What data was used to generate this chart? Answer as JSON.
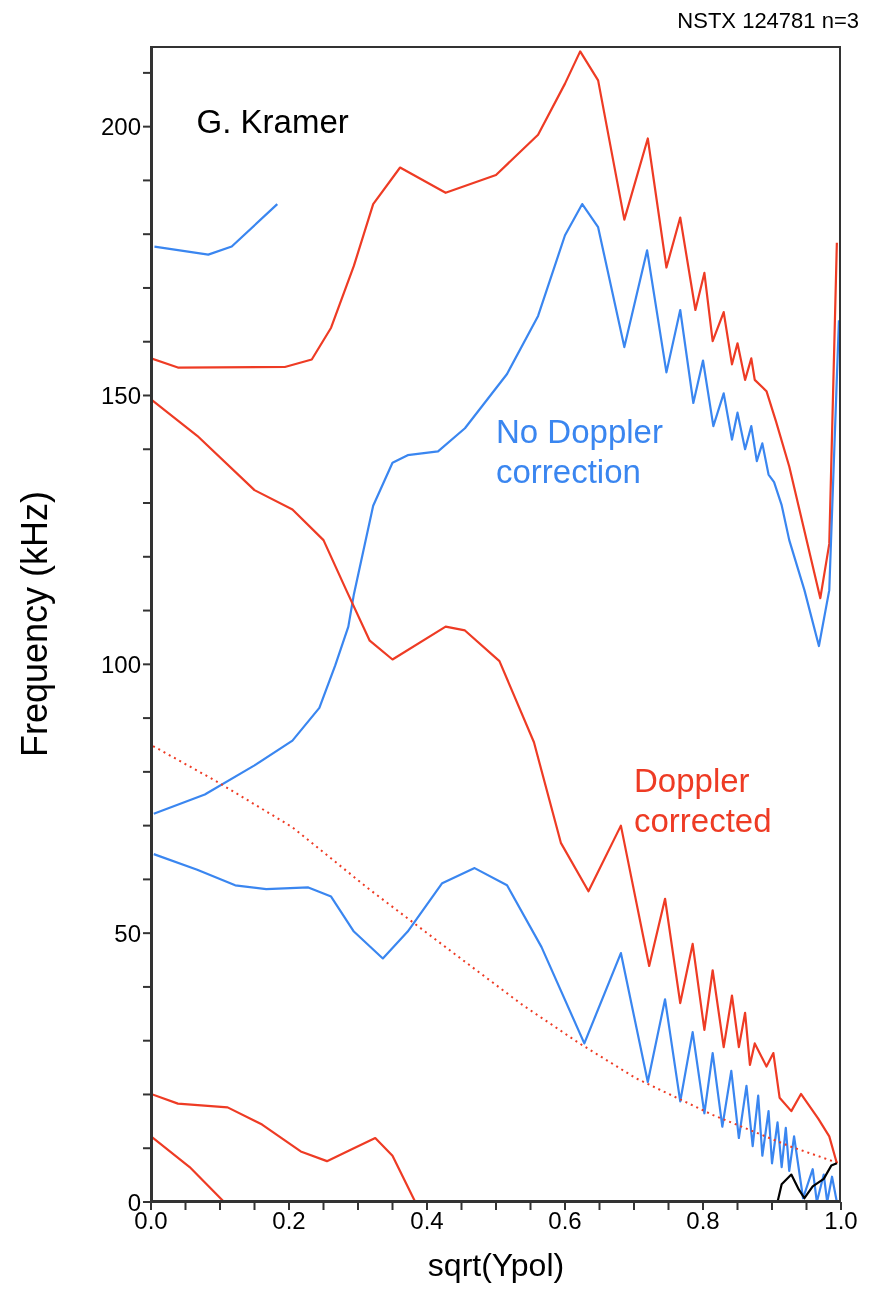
{
  "chart_data": {
    "type": "line",
    "title": "NSTX 124781 n=3",
    "xlabel": "sqrt(Ypol)",
    "ylabel": "Frequency (kHz)",
    "marker": "none",
    "line_style": "solid",
    "xlim": [
      0,
      1
    ],
    "xticks": [
      {
        "value": 0,
        "label": "0.0"
      },
      {
        "value": 0.05,
        "label": null
      },
      {
        "value": 0.1,
        "label": null
      },
      {
        "value": 0.15,
        "label": null
      },
      {
        "value": 0.2,
        "label": "0.2"
      },
      {
        "value": 0.25,
        "label": null
      },
      {
        "value": 0.3,
        "label": null
      },
      {
        "value": 0.35,
        "label": null
      },
      {
        "value": 0.4,
        "label": "0.4"
      },
      {
        "value": 0.45,
        "label": null
      },
      {
        "value": 0.5,
        "label": null
      },
      {
        "value": 0.55,
        "label": null
      },
      {
        "value": 0.6,
        "label": "0.6"
      },
      {
        "value": 0.65,
        "label": null
      },
      {
        "value": 0.7,
        "label": null
      },
      {
        "value": 0.75,
        "label": null
      },
      {
        "value": 0.8,
        "label": "0.8"
      },
      {
        "value": 0.85,
        "label": null
      },
      {
        "value": 0.9,
        "label": null
      },
      {
        "value": 0.95,
        "label": null
      },
      {
        "value": 1,
        "label": "1.0"
      }
    ],
    "ylim": [
      0,
      215
    ],
    "yticks": [
      0,
      {
        "value": 10,
        "label": null
      },
      {
        "value": 20,
        "label": null
      },
      {
        "value": 30,
        "label": null
      },
      {
        "value": 40,
        "label": null
      },
      50,
      {
        "value": 60,
        "label": null
      },
      {
        "value": 70,
        "label": null
      },
      {
        "value": 80,
        "label": null
      },
      {
        "value": 90,
        "label": null
      },
      100,
      {
        "value": 110,
        "label": null
      },
      {
        "value": 120,
        "label": null
      },
      {
        "value": 130,
        "label": null
      },
      {
        "value": 140,
        "label": null
      },
      150,
      {
        "value": 160,
        "label": null
      },
      {
        "value": 170,
        "label": null
      },
      {
        "value": 180,
        "label": null
      },
      {
        "value": 190,
        "label": null
      },
      200,
      {
        "value": 210,
        "label": null
      }
    ],
    "annotations": [
      "G. Kramer"
    ],
    "series": [
      {
        "color": "#3a86f0",
        "x": [
          0.005,
          0.083,
          0.117,
          0.183
        ],
        "values": [
          177.7,
          176.2,
          177.7,
          185.6
        ]
      },
      {
        "color": "#ee3b24",
        "x": [
          0,
          0.039,
          0.194,
          0.233,
          0.261,
          0.294,
          0.322,
          0.361,
          0.427,
          0.5,
          0.561,
          0.6,
          0.622,
          0.648,
          0.686,
          0.72,
          0.747,
          0.767,
          0.789,
          0.802,
          0.814,
          0.83,
          0.842,
          0.85,
          0.861,
          0.87,
          0.875,
          0.892,
          0.906,
          0.925,
          0.97,
          0.983,
          0.994
        ],
        "values": [
          156.9,
          155.2,
          155.3,
          156.7,
          162.6,
          174.1,
          185.6,
          192.4,
          187.7,
          191,
          198.5,
          208,
          214,
          208.6,
          182.7,
          197.8,
          173.8,
          183.1,
          165.9,
          172.8,
          160.1,
          165.5,
          155.8,
          159.7,
          152.9,
          156.9,
          152.9,
          150.8,
          145.1,
          136.8,
          112.3,
          122.4,
          178.4
        ]
      },
      {
        "name": "No Doppler correction",
        "color": "#3a86f0",
        "x": [
          0.004,
          0.078,
          0.15,
          0.205,
          0.244,
          0.267,
          0.286,
          0.294,
          0.322,
          0.35,
          0.372,
          0.416,
          0.455,
          0.516,
          0.561,
          0.6,
          0.625,
          0.648,
          0.686,
          0.719,
          0.747,
          0.767,
          0.786,
          0.8,
          0.815,
          0.83,
          0.842,
          0.85,
          0.861,
          0.87,
          0.878,
          0.886,
          0.895,
          0.903,
          0.914,
          0.925,
          0.947,
          0.968,
          0.983,
          0.997
        ],
        "values": [
          72.2,
          75.8,
          81.2,
          85.8,
          91.9,
          99.8,
          107,
          113,
          129.5,
          137.5,
          138.9,
          139.6,
          143.9,
          154,
          164.8,
          179.8,
          185.6,
          181.3,
          159,
          177,
          154.3,
          165.9,
          148.6,
          156.5,
          144.3,
          150.4,
          141.8,
          146.8,
          140,
          144.3,
          137.8,
          141.1,
          135.3,
          133.9,
          129.6,
          123.1,
          113.8,
          103.4,
          113.8,
          164
        ]
      },
      {
        "name": "Doppler corrected",
        "color": "#ee3b24",
        "x": [
          0,
          0.067,
          0.15,
          0.205,
          0.25,
          0.283,
          0.317,
          0.35,
          0.427,
          0.455,
          0.505,
          0.555,
          0.594,
          0.634,
          0.681,
          0.722,
          0.745,
          0.767,
          0.785,
          0.802,
          0.814,
          0.83,
          0.842,
          0.852,
          0.861,
          0.868,
          0.875,
          0.892,
          0.902,
          0.911,
          0.928,
          0.942,
          0.967,
          0.983,
          0.994
        ],
        "values": [
          149.3,
          142.5,
          132.4,
          128.8,
          123.1,
          113.8,
          104.4,
          100.9,
          107,
          106.3,
          100.6,
          85.5,
          66.8,
          57.8,
          70,
          43.9,
          56.4,
          37,
          48,
          32,
          43.1,
          28.8,
          38.4,
          28.8,
          35.2,
          25.5,
          29.5,
          25.2,
          27.7,
          19.4,
          16.9,
          20.1,
          15.5,
          12.2,
          7.2
        ]
      },
      {
        "color": "#3a86f0",
        "x": [
          0.004,
          0.067,
          0.122,
          0.167,
          0.228,
          0.261,
          0.294,
          0.336,
          0.372,
          0.422,
          0.469,
          0.516,
          0.566,
          0.628,
          0.681,
          0.72,
          0.745,
          0.767,
          0.785,
          0.802,
          0.814,
          0.828,
          0.841,
          0.852,
          0.863,
          0.872,
          0.88,
          0.886,
          0.895,
          0.9,
          0.908,
          0.914,
          0.92,
          0.925,
          0.932,
          0.945,
          0.959,
          0.965,
          0.975,
          0.98,
          0.987,
          0.994
        ],
        "values": [
          64.7,
          61.8,
          58.9,
          58.2,
          58.5,
          56.8,
          50.3,
          45.3,
          50.3,
          59.3,
          62.1,
          58.9,
          47.4,
          29.5,
          46.3,
          22.3,
          37.7,
          18.7,
          31.6,
          16.5,
          27.7,
          14,
          24.4,
          11.9,
          21.6,
          10.4,
          19.8,
          8.6,
          16.9,
          7.2,
          14.8,
          6.5,
          13.8,
          5.8,
          12.2,
          0.7,
          6.1,
          0,
          5.1,
          0,
          4.7,
          0
        ]
      },
      {
        "color": "#ee3b24",
        "line_style": "dotted",
        "x": [
          0.003,
          0.094,
          0.205,
          0.316,
          0.427,
          0.539,
          0.621,
          0.703,
          0.814,
          0.925,
          0.997
        ],
        "values": [
          84.8,
          78.3,
          69.7,
          58.2,
          47.4,
          36.6,
          29.5,
          23,
          16.2,
          10.4,
          7.2
        ]
      },
      {
        "color": "#ee3b24",
        "x": [
          0,
          0.039,
          0.111,
          0.161,
          0.217,
          0.255,
          0.294,
          0.325,
          0.35,
          0.383
        ],
        "values": [
          20.1,
          18.3,
          17.6,
          14.4,
          9.4,
          7.6,
          10,
          11.9,
          8.6,
          0
        ]
      },
      {
        "color": "#ee3b24",
        "x": [
          0,
          0.056,
          0.106
        ],
        "values": [
          12.2,
          6.5,
          0
        ]
      },
      {
        "color": "#000000",
        "x": [
          0.908,
          0.914,
          0.928,
          0.939,
          0.947,
          0.959,
          0.975,
          0.986,
          0.994
        ],
        "values": [
          0,
          3.3,
          5.1,
          2.3,
          0.7,
          2.9,
          4.3,
          6.8,
          7.2
        ]
      }
    ]
  }
}
